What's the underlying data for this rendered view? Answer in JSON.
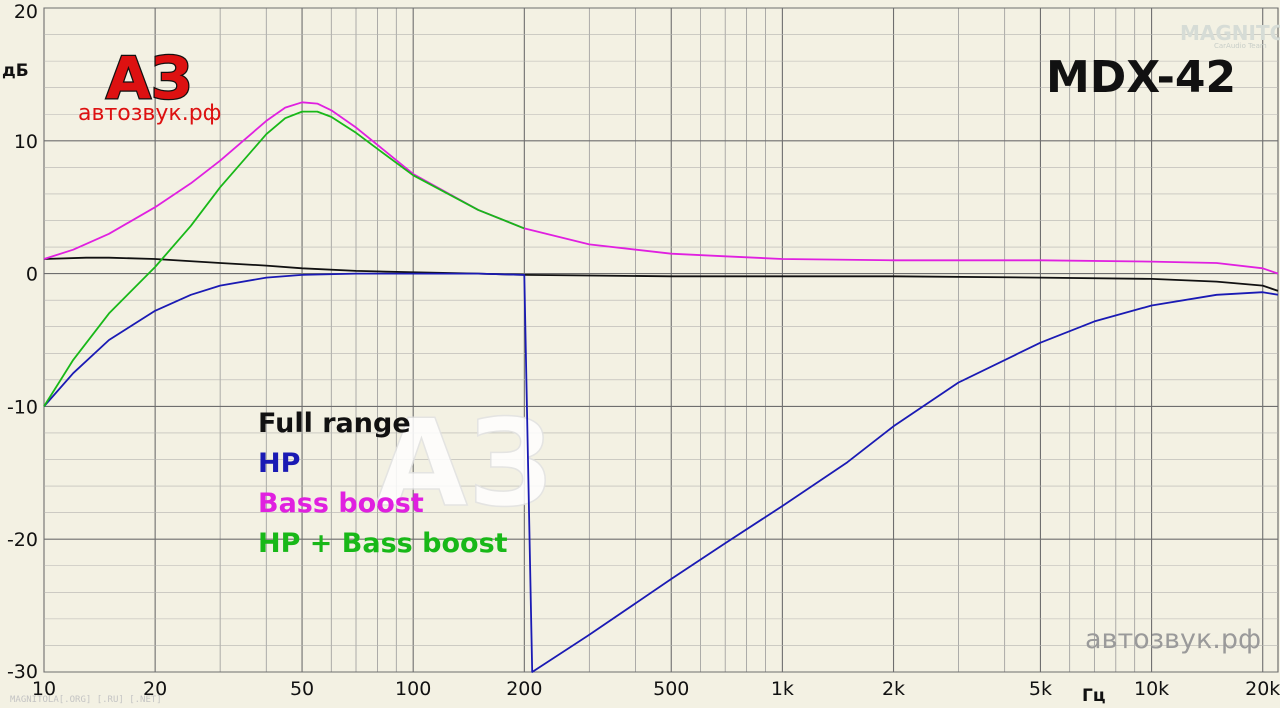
{
  "chart_data": {
    "type": "line",
    "title": "MDX-42",
    "ylabel": "дБ",
    "xlabel": "Гц",
    "x_scale": "log",
    "xlim": [
      10,
      22000
    ],
    "ylim": [
      -30,
      20
    ],
    "grid": true,
    "legend_position": "center-left",
    "x_ticks": [
      {
        "value": 10,
        "label": "10"
      },
      {
        "value": 20,
        "label": "20"
      },
      {
        "value": 50,
        "label": "50"
      },
      {
        "value": 100,
        "label": "100"
      },
      {
        "value": 200,
        "label": "200"
      },
      {
        "value": 500,
        "label": "500"
      },
      {
        "value": 1000,
        "label": "1k"
      },
      {
        "value": 2000,
        "label": "2k"
      },
      {
        "value": 5000,
        "label": "5k"
      },
      {
        "value": 10000,
        "label": "10k"
      },
      {
        "value": 20000,
        "label": "20k"
      }
    ],
    "y_ticks": [
      {
        "value": 20,
        "label": "20"
      },
      {
        "value": 10,
        "label": "10"
      },
      {
        "value": 0,
        "label": "0"
      },
      {
        "value": -10,
        "label": "-10"
      },
      {
        "value": -20,
        "label": "-20"
      },
      {
        "value": -30,
        "label": "-30"
      }
    ],
    "series": [
      {
        "name": "Full range",
        "color": "#111111",
        "points": [
          [
            10,
            1.1
          ],
          [
            13,
            1.2
          ],
          [
            15,
            1.2
          ],
          [
            20,
            1.1
          ],
          [
            30,
            0.8
          ],
          [
            40,
            0.6
          ],
          [
            50,
            0.4
          ],
          [
            70,
            0.2
          ],
          [
            100,
            0.1
          ],
          [
            150,
            0.0
          ],
          [
            200,
            -0.1
          ],
          [
            500,
            -0.2
          ],
          [
            1000,
            -0.2
          ],
          [
            2000,
            -0.2
          ],
          [
            5000,
            -0.3
          ],
          [
            10000,
            -0.4
          ],
          [
            15000,
            -0.6
          ],
          [
            20000,
            -0.9
          ],
          [
            22000,
            -1.3
          ]
        ]
      },
      {
        "name": "HP",
        "color": "#1a1ab4",
        "points": [
          [
            10,
            -10
          ],
          [
            12,
            -7.5
          ],
          [
            15,
            -5
          ],
          [
            20,
            -2.8
          ],
          [
            25,
            -1.6
          ],
          [
            30,
            -0.9
          ],
          [
            40,
            -0.3
          ],
          [
            50,
            -0.1
          ],
          [
            70,
            0
          ],
          [
            100,
            0
          ],
          [
            150,
            0
          ],
          [
            200,
            -0.1
          ],
          [
            210,
            -30
          ],
          [
            300,
            -27.2
          ],
          [
            500,
            -23
          ],
          [
            700,
            -20.3
          ],
          [
            1000,
            -17.5
          ],
          [
            1500,
            -14.2
          ],
          [
            2000,
            -11.5
          ],
          [
            3000,
            -8.2
          ],
          [
            5000,
            -5.2
          ],
          [
            7000,
            -3.6
          ],
          [
            10000,
            -2.4
          ],
          [
            15000,
            -1.6
          ],
          [
            20000,
            -1.4
          ],
          [
            22000,
            -1.6
          ]
        ]
      },
      {
        "name": "Bass boost",
        "color": "#e020e0",
        "points": [
          [
            10,
            1.1
          ],
          [
            12,
            1.8
          ],
          [
            15,
            3
          ],
          [
            20,
            5
          ],
          [
            25,
            6.8
          ],
          [
            30,
            8.5
          ],
          [
            40,
            11.5
          ],
          [
            45,
            12.5
          ],
          [
            50,
            12.9
          ],
          [
            55,
            12.8
          ],
          [
            60,
            12.3
          ],
          [
            70,
            11
          ],
          [
            80,
            9.7
          ],
          [
            100,
            7.5
          ],
          [
            150,
            4.8
          ],
          [
            200,
            3.4
          ],
          [
            300,
            2.2
          ],
          [
            500,
            1.5
          ],
          [
            700,
            1.3
          ],
          [
            1000,
            1.1
          ],
          [
            2000,
            1.0
          ],
          [
            5000,
            1.0
          ],
          [
            10000,
            0.9
          ],
          [
            15000,
            0.8
          ],
          [
            20000,
            0.4
          ],
          [
            22000,
            0.0
          ]
        ]
      },
      {
        "name": "HP + Bass boost",
        "color": "#18b818",
        "points": [
          [
            10,
            -10
          ],
          [
            12,
            -6.5
          ],
          [
            15,
            -3
          ],
          [
            20,
            0.5
          ],
          [
            25,
            3.6
          ],
          [
            30,
            6.5
          ],
          [
            40,
            10.5
          ],
          [
            45,
            11.7
          ],
          [
            50,
            12.2
          ],
          [
            55,
            12.2
          ],
          [
            60,
            11.8
          ],
          [
            70,
            10.6
          ],
          [
            80,
            9.4
          ],
          [
            100,
            7.4
          ],
          [
            150,
            4.8
          ],
          [
            200,
            3.4
          ]
        ]
      }
    ]
  },
  "branding": {
    "logo_letters": "АЗ",
    "logo_site": "автозвук.рф",
    "watermark_site": "автозвук.рф",
    "corner_watermark": "MAGNITOLA[.ORG] [.RU] [.NET]",
    "top_right_mark": "MAGNITOLA",
    "top_right_team": "CarAudio Team"
  }
}
